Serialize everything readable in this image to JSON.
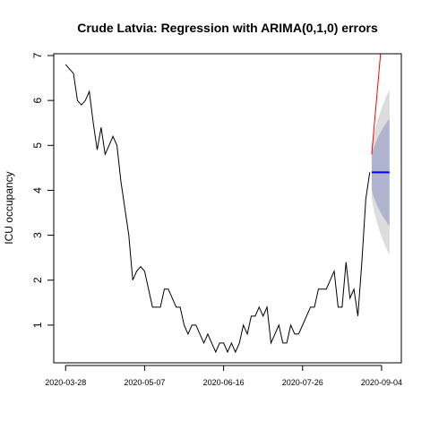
{
  "chart_data": {
    "type": "line",
    "title": "Crude Latvia: Regression with ARIMA(0,1,0) errors",
    "ylabel": "ICU occupancy",
    "xlim": [
      "2020-03-22",
      "2020-09-14"
    ],
    "ylim": [
      0.16,
      7.04
    ],
    "xticks": [
      "2020-03-28",
      "2020-05-07",
      "2020-06-16",
      "2020-07-26",
      "2020-09-04"
    ],
    "yticks": [
      1,
      2,
      3,
      4,
      5,
      6,
      7
    ],
    "series": [
      {
        "color": "#000000",
        "x": [
          "2020-03-28",
          "2020-03-30",
          "2020-04-01",
          "2020-04-03",
          "2020-04-05",
          "2020-04-07",
          "2020-04-09",
          "2020-04-11",
          "2020-04-13",
          "2020-04-15",
          "2020-04-17",
          "2020-04-19",
          "2020-04-21",
          "2020-04-23",
          "2020-04-25",
          "2020-04-27",
          "2020-04-29",
          "2020-05-01",
          "2020-05-03",
          "2020-05-05",
          "2020-05-07",
          "2020-05-09",
          "2020-05-11",
          "2020-05-13",
          "2020-05-15",
          "2020-05-17",
          "2020-05-19",
          "2020-05-21",
          "2020-05-23",
          "2020-05-25",
          "2020-05-27",
          "2020-05-29",
          "2020-05-31",
          "2020-06-02",
          "2020-06-04",
          "2020-06-06",
          "2020-06-08",
          "2020-06-10",
          "2020-06-12",
          "2020-06-14",
          "2020-06-16",
          "2020-06-18",
          "2020-06-20",
          "2020-06-22",
          "2020-06-24",
          "2020-06-26",
          "2020-06-28",
          "2020-06-30",
          "2020-07-02",
          "2020-07-04",
          "2020-07-06",
          "2020-07-08",
          "2020-07-10",
          "2020-07-12",
          "2020-07-14",
          "2020-07-16",
          "2020-07-18",
          "2020-07-20",
          "2020-07-22",
          "2020-07-24",
          "2020-07-26",
          "2020-07-28",
          "2020-07-30",
          "2020-08-01",
          "2020-08-03",
          "2020-08-05",
          "2020-08-07",
          "2020-08-09",
          "2020-08-11",
          "2020-08-13",
          "2020-08-15",
          "2020-08-17",
          "2020-08-19",
          "2020-08-21",
          "2020-08-23",
          "2020-08-25",
          "2020-08-27",
          "2020-08-29"
        ],
        "values": [
          6.8,
          6.7,
          6.6,
          6.0,
          5.9,
          6.0,
          6.2,
          5.5,
          4.9,
          5.4,
          4.8,
          5.0,
          5.2,
          5.0,
          4.2,
          3.6,
          3.0,
          2.0,
          2.2,
          2.3,
          2.2,
          1.8,
          1.4,
          1.4,
          1.4,
          1.8,
          1.8,
          1.6,
          1.4,
          1.4,
          1.0,
          0.8,
          1.0,
          1.0,
          0.8,
          0.6,
          0.8,
          0.6,
          0.4,
          0.6,
          0.6,
          0.4,
          0.6,
          0.4,
          0.6,
          1.0,
          0.8,
          1.2,
          1.2,
          1.4,
          1.2,
          1.4,
          0.6,
          0.8,
          1.0,
          0.6,
          0.6,
          1.0,
          0.8,
          0.8,
          1.0,
          1.2,
          1.4,
          1.4,
          1.8,
          1.8,
          1.8,
          2.0,
          2.2,
          1.4,
          1.4,
          2.4,
          1.6,
          1.8,
          1.2,
          2.4,
          3.8,
          4.4
        ]
      },
      {
        "color": "#ff0000",
        "x": [
          "2020-08-30",
          "2020-08-31",
          "2020-09-01",
          "2020-09-02",
          "2020-09-03",
          "2020-09-04"
        ],
        "values": [
          4.8,
          5.3,
          5.8,
          6.3,
          6.8,
          7.3
        ]
      }
    ],
    "forecast": {
      "color": "#0000ff",
      "band80_color": "#b0b4cc",
      "band95_color": "#dcdcdc",
      "x": [
        "2020-08-30",
        "2020-08-31",
        "2020-09-01",
        "2020-09-02",
        "2020-09-03",
        "2020-09-04",
        "2020-09-05",
        "2020-09-06",
        "2020-09-07",
        "2020-09-08"
      ],
      "mean": [
        4.4,
        4.4,
        4.4,
        4.4,
        4.4,
        4.4,
        4.4,
        4.4,
        4.4,
        4.4
      ],
      "lo80": [
        4.02,
        3.86,
        3.74,
        3.64,
        3.55,
        3.47,
        3.39,
        3.33,
        3.26,
        3.2
      ],
      "hi80": [
        4.78,
        4.94,
        5.06,
        5.16,
        5.25,
        5.33,
        5.41,
        5.47,
        5.54,
        5.6
      ],
      "lo95": [
        3.82,
        3.58,
        3.39,
        3.24,
        3.1,
        2.97,
        2.86,
        2.75,
        2.65,
        2.56
      ],
      "hi95": [
        4.98,
        5.22,
        5.41,
        5.56,
        5.7,
        5.83,
        5.94,
        6.05,
        6.15,
        6.24
      ]
    }
  }
}
